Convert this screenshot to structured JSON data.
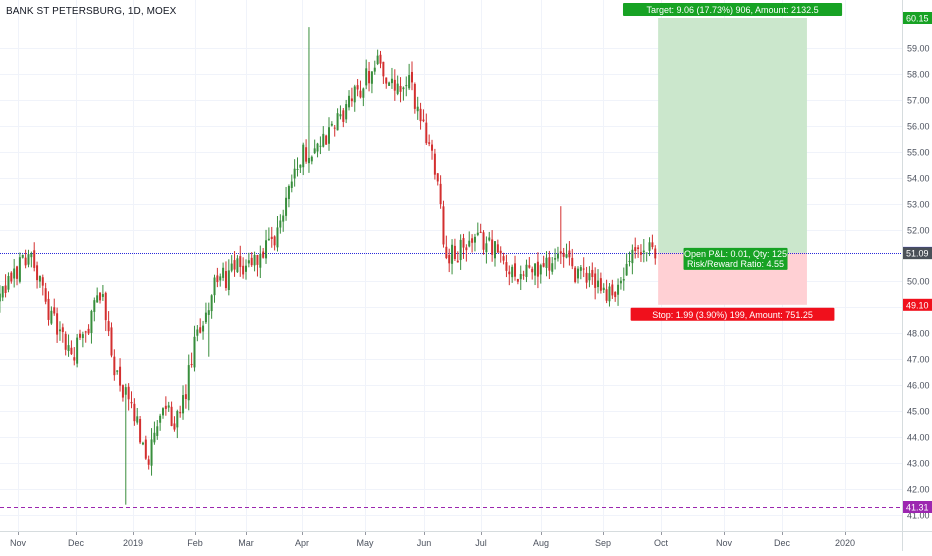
{
  "symbol": {
    "title": "BANK ST PETERSBURG, 1D, MOEX"
  },
  "colors": {
    "up": "#26a69a",
    "down": "#ef5350",
    "candle_up": "#388e3c",
    "candle_down": "#d32f2f",
    "wick": "#555555",
    "target_fill": "#c8e6c9",
    "stop_fill": "#ffcdd2",
    "entry_line": "#2a2adb",
    "low_line": "#9c27b0",
    "target_badge": "#17a224",
    "stop_badge": "#f0101c",
    "current_badge": "#4a5058"
  },
  "chart_data": {
    "type": "candlestick",
    "title": "BANK ST PETERSBURG, 1D, MOEX",
    "xlabel": "",
    "ylabel": "",
    "ylim": [
      40.8,
      60.8
    ],
    "grid": true,
    "y_ticks": [
      "41.00",
      "42.00",
      "43.00",
      "44.00",
      "45.00",
      "46.00",
      "47.00",
      "48.00",
      "49.00",
      "50.00",
      "52.00",
      "53.00",
      "54.00",
      "55.00",
      "56.00",
      "57.00",
      "58.00",
      "59.00"
    ],
    "x_ticks": [
      "Nov",
      "Dec",
      "2019",
      "Feb",
      "Mar",
      "Apr",
      "May",
      "Jun",
      "Jul",
      "Aug",
      "Sep",
      "Oct",
      "Nov",
      "Dec",
      "2020"
    ],
    "keypoints": [
      {
        "day": 0,
        "close": 49.0
      },
      {
        "day": 6,
        "close": 50.3
      },
      {
        "day": 11,
        "close": 51.2
      },
      {
        "day": 19,
        "close": 48.6
      },
      {
        "day": 26,
        "close": 47.1
      },
      {
        "day": 31,
        "close": 48.0
      },
      {
        "day": 36,
        "close": 49.7
      },
      {
        "day": 42,
        "close": 46.2
      },
      {
        "day": 48,
        "close": 44.8
      },
      {
        "day": 53,
        "close": 43.2
      },
      {
        "day": 58,
        "close": 45.0
      },
      {
        "day": 64,
        "close": 44.6
      },
      {
        "day": 69,
        "close": 47.5
      },
      {
        "day": 76,
        "close": 49.9
      },
      {
        "day": 83,
        "close": 50.4
      },
      {
        "day": 90,
        "close": 50.8
      },
      {
        "day": 97,
        "close": 51.4
      },
      {
        "day": 103,
        "close": 54.2
      },
      {
        "day": 108,
        "close": 55.0
      },
      {
        "day": 115,
        "close": 55.5
      },
      {
        "day": 121,
        "close": 56.5
      },
      {
        "day": 127,
        "close": 57.5
      },
      {
        "day": 133,
        "close": 58.6
      },
      {
        "day": 139,
        "close": 57.2
      },
      {
        "day": 144,
        "close": 57.6
      },
      {
        "day": 149,
        "close": 56.0
      },
      {
        "day": 154,
        "close": 54.2
      },
      {
        "day": 156,
        "close": 51.6
      },
      {
        "day": 158,
        "close": 50.9
      },
      {
        "day": 165,
        "close": 51.4
      },
      {
        "day": 172,
        "close": 51.6
      },
      {
        "day": 178,
        "close": 50.5
      },
      {
        "day": 184,
        "close": 50.3
      },
      {
        "day": 190,
        "close": 50.5
      },
      {
        "day": 196,
        "close": 51.0
      },
      {
        "day": 202,
        "close": 50.3
      },
      {
        "day": 208,
        "close": 50.1
      },
      {
        "day": 214,
        "close": 49.5
      },
      {
        "day": 218,
        "close": 49.9
      },
      {
        "day": 223,
        "close": 51.1
      },
      {
        "day": 230,
        "close": 51.1
      }
    ],
    "spikes": [
      {
        "day": 109,
        "high": 59.8
      },
      {
        "day": 45,
        "low": 41.4
      },
      {
        "day": 197,
        "high": 52.9
      },
      {
        "day": 74,
        "low": 47.1
      }
    ],
    "horizontal_lines": [
      {
        "name": "entry",
        "value": 51.1
      },
      {
        "name": "period-low",
        "value": 41.31
      }
    ],
    "position": {
      "type": "long",
      "entry": 51.1,
      "target": 60.15,
      "stop": 49.1,
      "start_day": 231,
      "end_day": 283
    },
    "current_price": 51.09
  },
  "price_badges": [
    {
      "name": "target-price-badge",
      "label": "60.15",
      "value": 60.15,
      "color_key": "target_badge"
    },
    {
      "name": "entry-price-badge",
      "label": "51.10",
      "value": 51.1,
      "color_key": "entry_line"
    },
    {
      "name": "current-price-badge",
      "label": "51.09",
      "value": 51.09,
      "color_key": "current_badge"
    },
    {
      "name": "stop-price-badge",
      "label": "49.10",
      "value": 49.1,
      "color_key": "stop_badge"
    },
    {
      "name": "low-price-badge",
      "label": "41.31",
      "value": 41.31,
      "color_key": "low_line"
    }
  ],
  "position_tool": {
    "target_text": "Target: 9.06 (17.73%) 906, Amount: 2132.5",
    "stop_text": "Stop: 1.99 (3.90%) 199, Amount: 751.25",
    "pnl_text": "Open P&L: 0.01, Qty: 125",
    "rr_text": "Risk/Reward Ratio: 4.55"
  }
}
